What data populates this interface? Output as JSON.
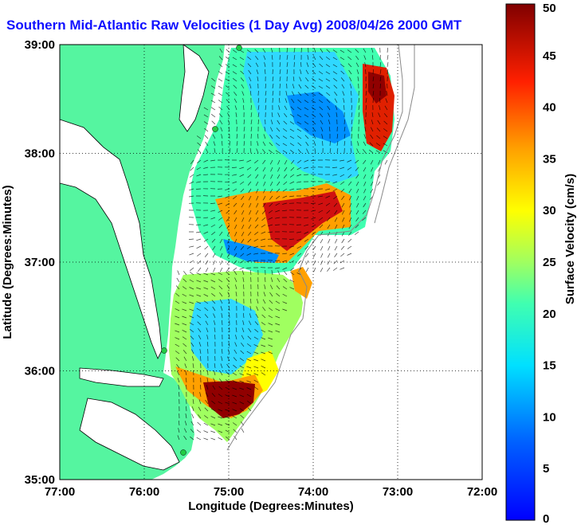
{
  "title": "Southern Mid-Atlantic Raw Velocities (1 Day Avg) 2008/04/26 2000 GMT",
  "map": {
    "xlabel": "Longitude (Degrees:Minutes)",
    "ylabel": "Latitude (Degrees:Minutes)",
    "x_ticks": [
      "77:00",
      "76:00",
      "75:00",
      "74:00",
      "73:00",
      "72:00"
    ],
    "y_ticks": [
      "39:00",
      "38:00",
      "37:00",
      "36:00",
      "35:00"
    ],
    "lon_range": [
      -77,
      -72
    ],
    "lat_range": [
      35,
      39
    ],
    "grid": true,
    "land_color": "#55f5a0",
    "water_color": "#ffffff",
    "station_color": "#22cc44"
  },
  "colorbar": {
    "label": "Surface Velocity (cm/s)",
    "ticks": [
      "0",
      "5",
      "10",
      "15",
      "20",
      "25",
      "30",
      "35",
      "40",
      "45",
      "50"
    ],
    "range": [
      0,
      50
    ],
    "colormap": "jet"
  }
}
